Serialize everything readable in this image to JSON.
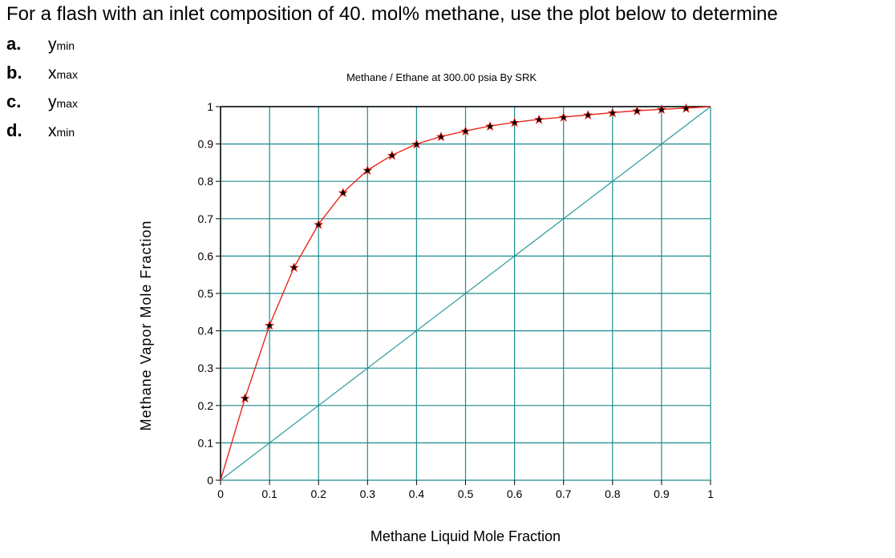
{
  "question": {
    "text": "For a flash with an inlet composition of 40. mol% methane, use the plot below to determine",
    "parts": [
      {
        "letter": "a.",
        "var": "y",
        "sub": "min"
      },
      {
        "letter": "b.",
        "var": "x",
        "sub": "max"
      },
      {
        "letter": "c.",
        "var": "y",
        "sub": "max"
      },
      {
        "letter": "d.",
        "var": "x",
        "sub": "min"
      }
    ]
  },
  "chart_data": {
    "type": "line",
    "title": "Methane / Ethane at   300.00 psia By SRK",
    "xlabel": "Methane Liquid Mole Fraction",
    "ylabel": "Methane Vapor Mole Fraction",
    "xlim": [
      0,
      1
    ],
    "ylim": [
      0,
      1
    ],
    "grid": true,
    "x_ticks": [
      "0",
      "0.1",
      "0.2",
      "0.3",
      "0.4",
      "0.5",
      "0.6",
      "0.7",
      "0.8",
      "0.9",
      "1"
    ],
    "y_ticks": [
      "0",
      "0.1",
      "0.2",
      "0.3",
      "0.4",
      "0.5",
      "0.6",
      "0.7",
      "0.8",
      "0.9",
      "1"
    ],
    "series": [
      {
        "x": [
          0,
          0.05,
          0.1,
          0.15,
          0.2,
          0.25,
          0.3,
          0.35,
          0.4,
          0.45,
          0.5,
          0.55,
          0.6,
          0.65,
          0.7,
          0.75,
          0.8,
          0.85,
          0.9,
          0.95,
          1.0
        ],
        "y": [
          0,
          0.22,
          0.415,
          0.57,
          0.685,
          0.77,
          0.83,
          0.87,
          0.9,
          0.92,
          0.935,
          0.948,
          0.958,
          0.966,
          0.972,
          0.978,
          0.984,
          0.989,
          0.993,
          0.996,
          1.0
        ],
        "color": "#e8281c",
        "marker_color": "#000000"
      },
      {
        "x": [
          0,
          1
        ],
        "y": [
          0,
          1
        ],
        "color": "#2c9a9a"
      }
    ],
    "colors": {
      "grid": "#1c8c8c",
      "frame": "#000000"
    }
  }
}
